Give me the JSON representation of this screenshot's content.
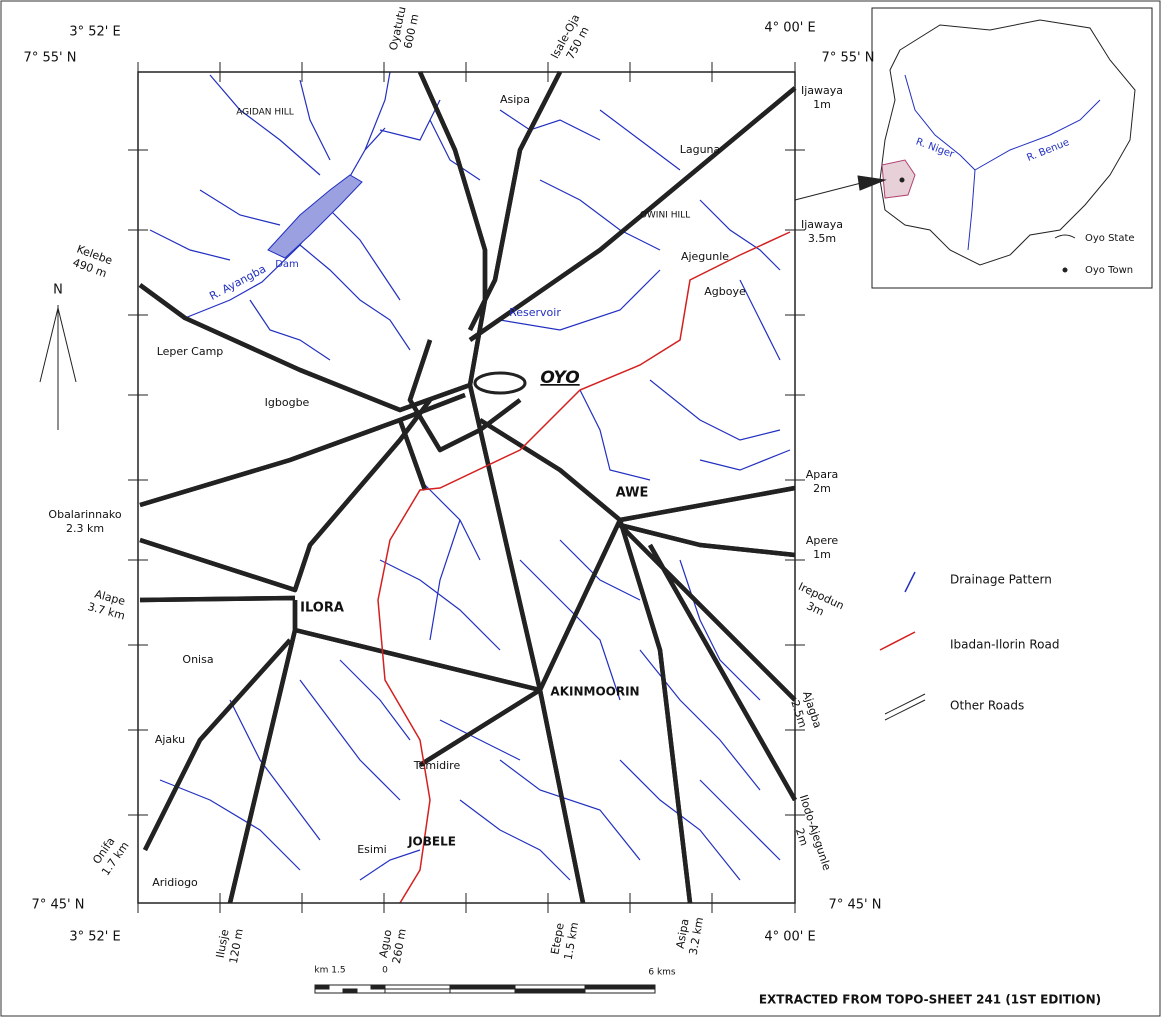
{
  "coordinates": [
    "3° 52' E",
    "7° 55' N",
    "4° 00' E",
    "7° 55' N",
    "7° 45' N",
    "7° 45' N",
    "3° 52' E",
    "4° 00' E"
  ],
  "edge_roads": [
    {
      "name": "Oyatutu",
      "distance": "600 m"
    },
    {
      "name": "Isale-Oja",
      "distance": "750 m"
    },
    {
      "name": "Ijawaya",
      "distance": "1m"
    },
    {
      "name": "Ijawaya",
      "distance": "3.5m"
    },
    {
      "name": "Apara",
      "distance": "2m"
    },
    {
      "name": "Apere",
      "distance": "1m"
    },
    {
      "name": "Irepodun",
      "distance": "3m"
    },
    {
      "name": "Ajagba",
      "distance": "2.5m"
    },
    {
      "name": "Ilodo-Ajegunle",
      "distance": "2m"
    },
    {
      "name": "Kelebe",
      "distance": "490 m"
    },
    {
      "name": "Obalarinnako",
      "distance": "2.3 km"
    },
    {
      "name": "Alape",
      "distance": "3.7 km"
    },
    {
      "name": "Onifa",
      "distance": "1.7 km"
    },
    {
      "name": "Ilusje",
      "distance": "120 m"
    },
    {
      "name": "Aguo",
      "distance": "260 m"
    },
    {
      "name": "Etepe",
      "distance": "1.5 km"
    },
    {
      "name": "Asipa",
      "distance": "3.2 km"
    }
  ],
  "places": [
    "AGIDAN HILL",
    "Asipa",
    "Laguna",
    "OWINI HILL",
    "Ajegunle",
    "Agboye",
    "Leper Camp",
    "Igbogbe",
    "OYO",
    "AWE",
    "ILORA",
    "Onisa",
    "AKINMOORIN",
    "Ajaku",
    "Temidire",
    "Esimi",
    "JOBELE",
    "Aridiogo"
  ],
  "water": [
    "R. Ayangba",
    "Dam",
    "Reservoir"
  ],
  "north": "N",
  "inset": {
    "rivers": [
      "R. Niger",
      "R. Benue"
    ],
    "legend": [
      "Oyo State",
      "Oyo Town"
    ]
  },
  "legend": [
    "Drainage Pattern",
    "Ibadan-Ilorin Road",
    "Other Roads"
  ],
  "scale": [
    "km 1.5",
    "0",
    "6 kms"
  ],
  "source": "EXTRACTED FROM TOPO-SHEET 241 (1ST EDITION)"
}
